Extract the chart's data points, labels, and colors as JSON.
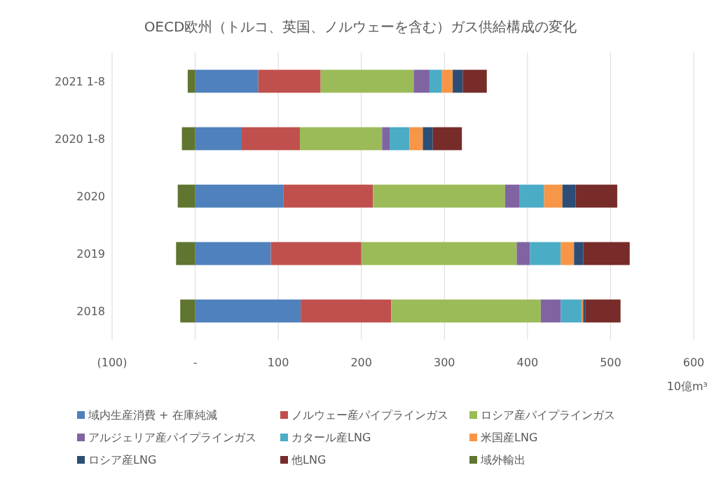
{
  "chart_data": {
    "type": "bar",
    "orientation": "horizontal",
    "stacked": true,
    "title": "OECD欧州（トルコ、英国、ノルウェーを含む）ガス供給構成の変化",
    "xlabel": "10億m³",
    "categories": [
      "2021 1-8",
      "2020 1-8",
      "2020",
      "2019",
      "2018"
    ],
    "series": [
      {
        "name": "域内生産消費 + 在庫純減",
        "color": "#4f81bd",
        "values": [
          76,
          56,
          106,
          91,
          127
        ]
      },
      {
        "name": "ノルウェー産パイプラインガス",
        "color": "#c0504d",
        "values": [
          75,
          70,
          108,
          109,
          109
        ]
      },
      {
        "name": "ロシア産パイプラインガス",
        "color": "#9bbb59",
        "values": [
          112,
          99,
          159,
          187,
          180
        ]
      },
      {
        "name": "アルジェリア産パイプラインガス",
        "color": "#8064a2",
        "values": [
          19,
          9,
          17,
          16,
          24
        ]
      },
      {
        "name": "カタール産LNG",
        "color": "#4bacc6",
        "values": [
          15,
          24,
          30,
          37,
          25
        ]
      },
      {
        "name": "米国産LNG",
        "color": "#f79646",
        "values": [
          13,
          16,
          22,
          16,
          2
        ]
      },
      {
        "name": "ロシア産LNG",
        "color": "#2c4d75",
        "values": [
          12,
          12,
          16,
          11,
          3
        ]
      },
      {
        "name": "他LNG",
        "color": "#772c2a",
        "values": [
          29,
          35,
          50,
          56,
          42
        ]
      },
      {
        "name": "域外輸出",
        "color": "#5f7530",
        "values": [
          -9,
          -16,
          -21,
          -23,
          -18
        ]
      }
    ],
    "xlim": [
      -100,
      600
    ],
    "xticks": [
      {
        "value": -100,
        "label": "(100)"
      },
      {
        "value": 0,
        "label": "-"
      },
      100,
      200,
      300,
      400,
      500,
      600
    ],
    "grid": "x",
    "legend": "bottom"
  }
}
